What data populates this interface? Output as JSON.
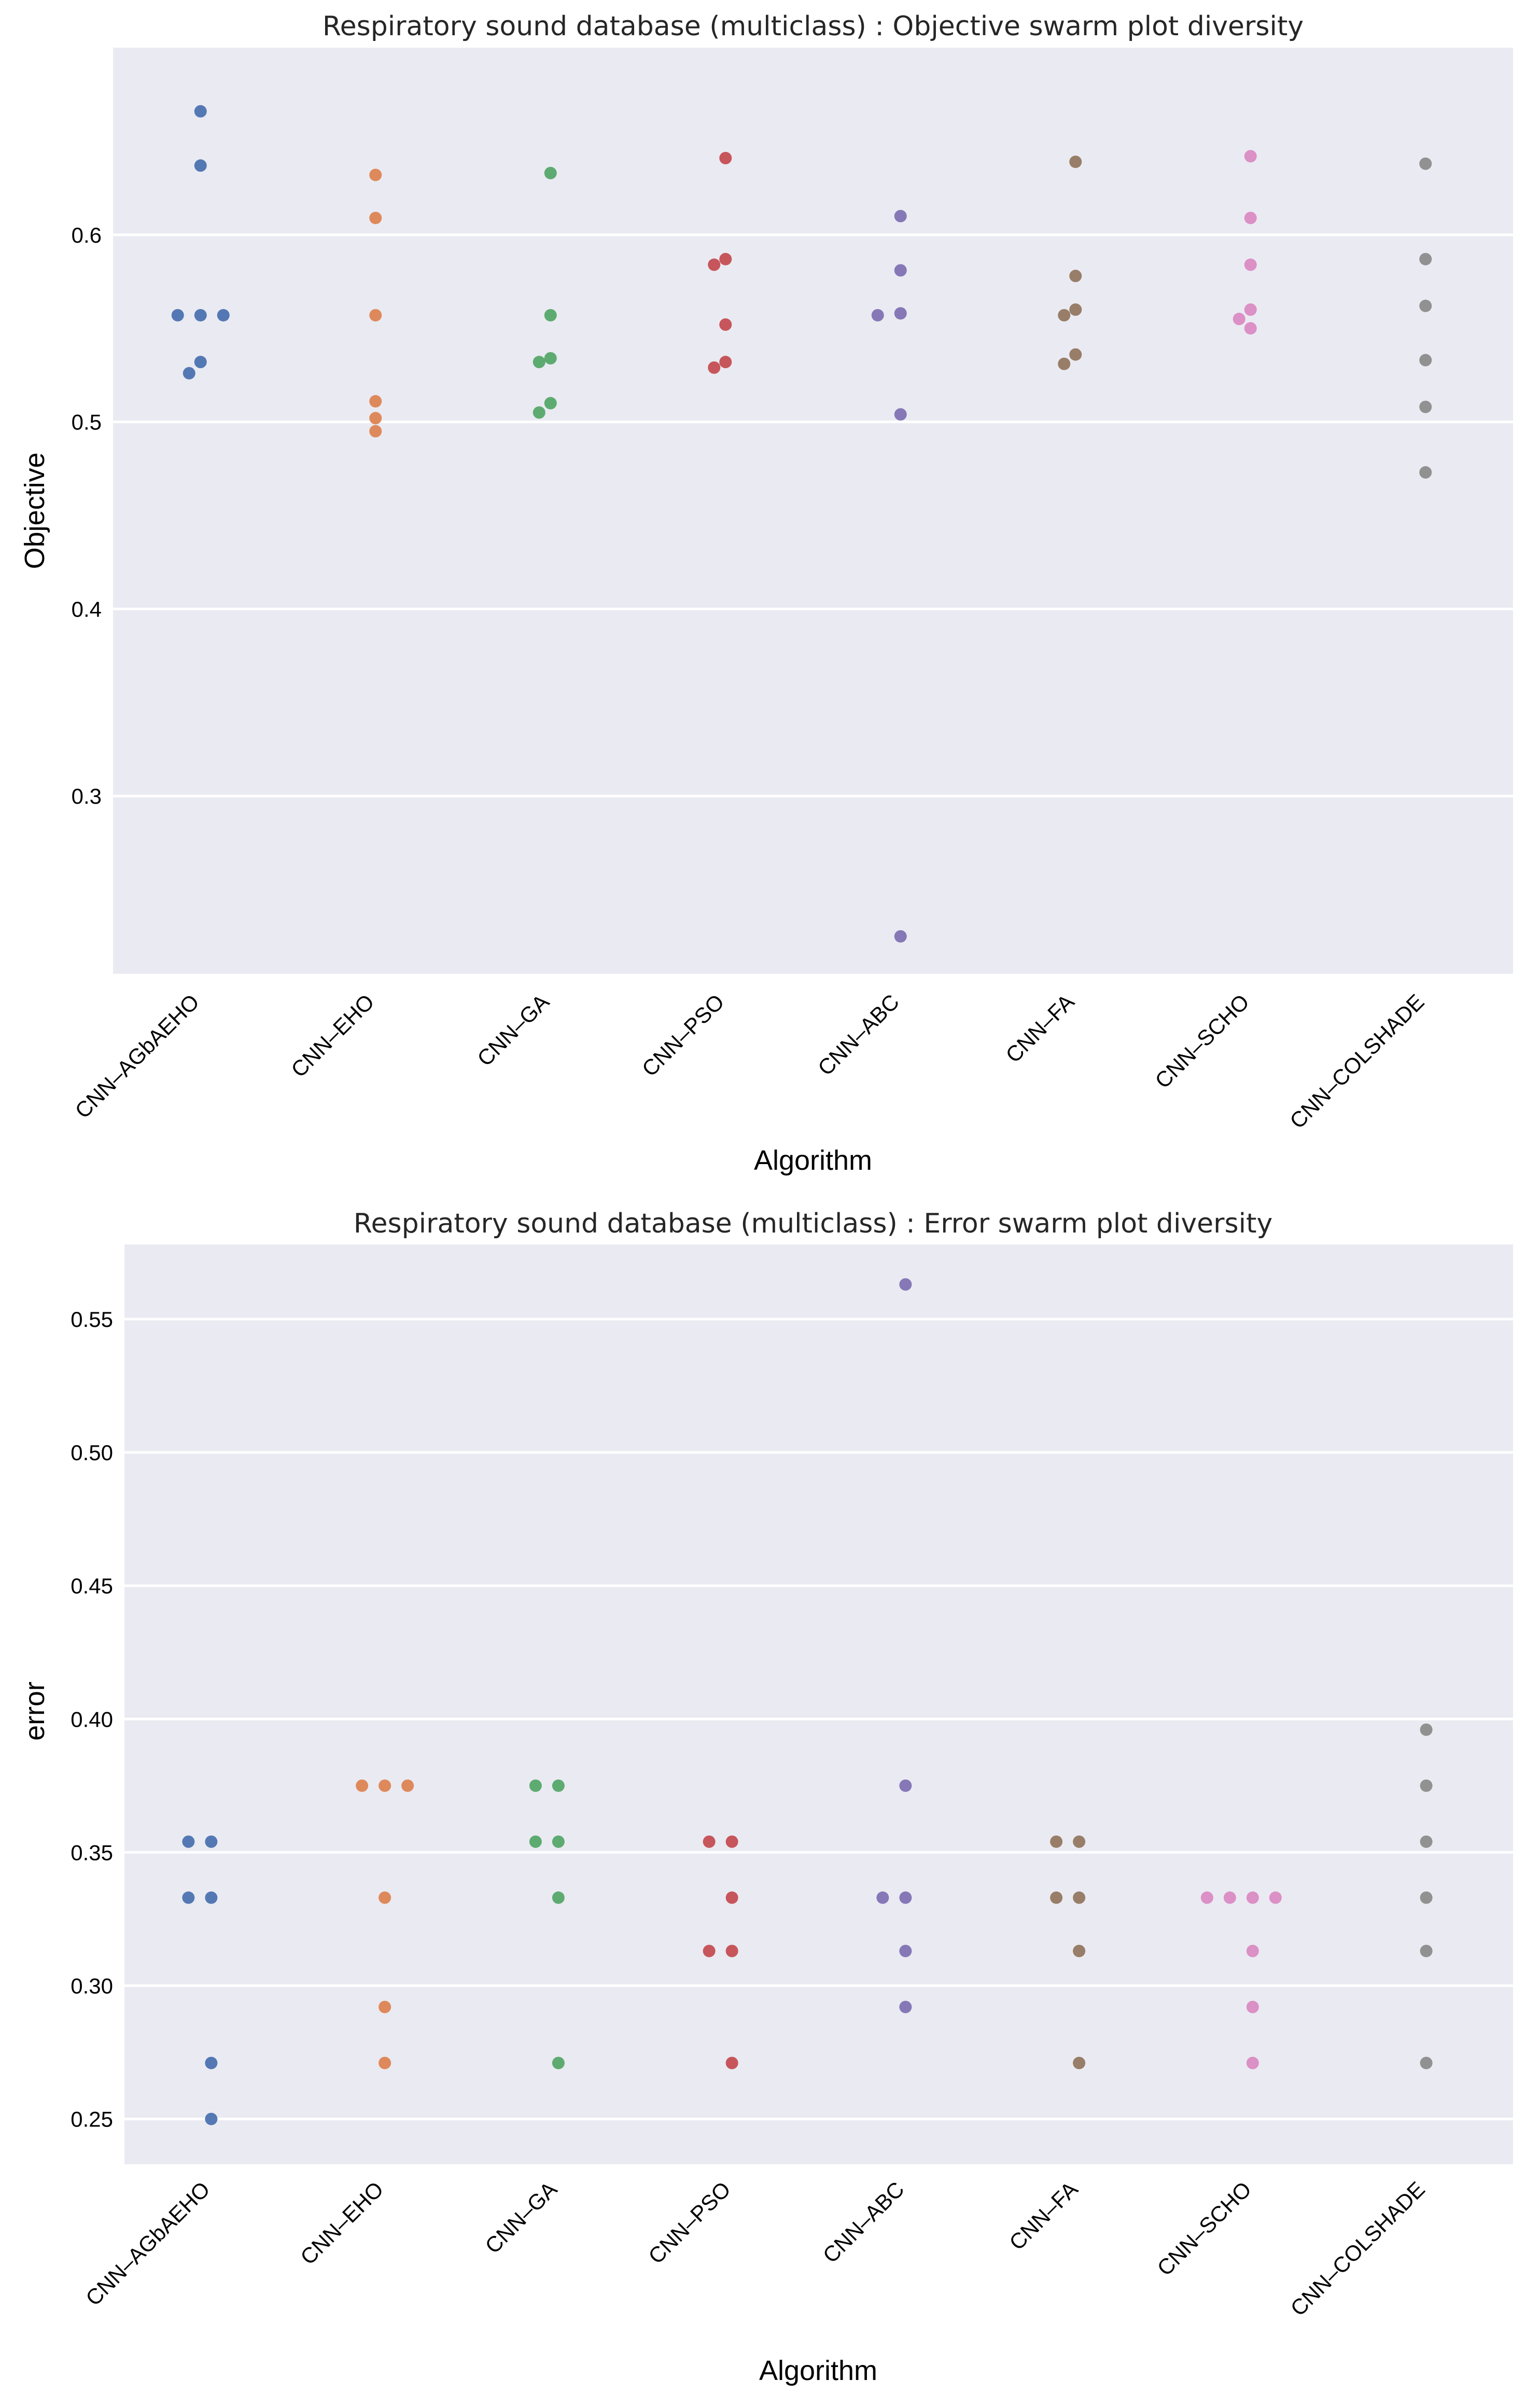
{
  "chart_data": [
    {
      "type": "scatter",
      "subtype": "swarm",
      "title": "Respiratory sound database (multiclass) : Objective swarm plot diversity",
      "xlabel": "Algorithm",
      "ylabel": "Objective",
      "ylim": [
        0.205,
        0.7
      ],
      "yticks": [
        0.3,
        0.4,
        0.5,
        0.6
      ],
      "ytick_labels": [
        "0.3",
        "0.4",
        "0.5",
        "0.6"
      ],
      "categories": [
        "CNN–AGbAEHO",
        "CNN–EHO",
        "CNN–GA",
        "CNN–PSO",
        "CNN–ABC",
        "CNN–FA",
        "CNN–SCHO",
        "CNN–COLSHADE"
      ],
      "colors": [
        "#4c72b0",
        "#dd8452",
        "#55a868",
        "#c44e52",
        "#8172b3",
        "#937860",
        "#da8bc3",
        "#8c8c8c"
      ],
      "series": [
        {
          "name": "CNN–AGbAEHO",
          "values": [
            0.666,
            0.637,
            0.557,
            0.557,
            0.557,
            0.532,
            0.526
          ]
        },
        {
          "name": "CNN–EHO",
          "values": [
            0.632,
            0.609,
            0.557,
            0.511,
            0.502,
            0.495
          ]
        },
        {
          "name": "CNN–GA",
          "values": [
            0.633,
            0.557,
            0.534,
            0.532,
            0.51,
            0.505
          ]
        },
        {
          "name": "CNN–PSO",
          "values": [
            0.641,
            0.587,
            0.584,
            0.552,
            0.532,
            0.529
          ]
        },
        {
          "name": "CNN–ABC",
          "values": [
            0.61,
            0.581,
            0.558,
            0.557,
            0.504,
            0.225
          ]
        },
        {
          "name": "CNN–FA",
          "values": [
            0.639,
            0.578,
            0.56,
            0.557,
            0.536,
            0.531
          ]
        },
        {
          "name": "CNN–SCHO",
          "values": [
            0.642,
            0.609,
            0.584,
            0.56,
            0.555,
            0.55
          ]
        },
        {
          "name": "CNN–COLSHADE",
          "values": [
            0.638,
            0.587,
            0.562,
            0.533,
            0.508,
            0.473
          ]
        }
      ]
    },
    {
      "type": "scatter",
      "subtype": "swarm",
      "title": "Respiratory sound database (multiclass) : Error swarm plot diversity",
      "xlabel": "Algorithm",
      "ylabel": "error",
      "ylim": [
        0.233,
        0.578
      ],
      "yticks": [
        0.25,
        0.3,
        0.35,
        0.4,
        0.45,
        0.5,
        0.55
      ],
      "ytick_labels": [
        "0.25",
        "0.30",
        "0.35",
        "0.40",
        "0.45",
        "0.50",
        "0.55"
      ],
      "categories": [
        "CNN–AGbAEHO",
        "CNN–EHO",
        "CNN–GA",
        "CNN–PSO",
        "CNN–ABC",
        "CNN–FA",
        "CNN–SCHO",
        "CNN–COLSHADE"
      ],
      "colors": [
        "#4c72b0",
        "#dd8452",
        "#55a868",
        "#c44e52",
        "#8172b3",
        "#937860",
        "#da8bc3",
        "#8c8c8c"
      ],
      "series": [
        {
          "name": "CNN–AGbAEHO",
          "values": [
            0.354,
            0.354,
            0.333,
            0.333,
            0.271,
            0.25
          ]
        },
        {
          "name": "CNN–EHO",
          "values": [
            0.375,
            0.375,
            0.375,
            0.333,
            0.292,
            0.271
          ]
        },
        {
          "name": "CNN–GA",
          "values": [
            0.375,
            0.375,
            0.354,
            0.354,
            0.333,
            0.271
          ]
        },
        {
          "name": "CNN–PSO",
          "values": [
            0.354,
            0.354,
            0.333,
            0.313,
            0.313,
            0.271
          ]
        },
        {
          "name": "CNN–ABC",
          "values": [
            0.563,
            0.375,
            0.333,
            0.333,
            0.313,
            0.292
          ]
        },
        {
          "name": "CNN–FA",
          "values": [
            0.354,
            0.354,
            0.333,
            0.333,
            0.313,
            0.271
          ]
        },
        {
          "name": "CNN–SCHO",
          "values": [
            0.333,
            0.333,
            0.333,
            0.333,
            0.313,
            0.292,
            0.271
          ]
        },
        {
          "name": "CNN–COLSHADE",
          "values": [
            0.396,
            0.375,
            0.354,
            0.333,
            0.313,
            0.271
          ]
        }
      ]
    }
  ]
}
